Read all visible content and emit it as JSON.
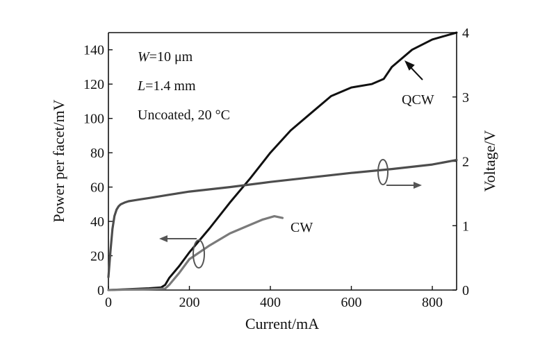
{
  "chart_data": {
    "type": "line",
    "xlabel": "Current/mA",
    "ylabel": "Power per facet/mV",
    "y2label": "Voltage/V",
    "xlim": [
      0,
      860
    ],
    "ylim": [
      0,
      150
    ],
    "y2lim": [
      0,
      4
    ],
    "xticks": [
      0,
      200,
      400,
      600,
      800
    ],
    "yticks": [
      0,
      20,
      40,
      60,
      80,
      100,
      120,
      140
    ],
    "y2ticks": [
      0,
      1,
      2,
      3,
      4
    ],
    "grid": false,
    "annotations": {
      "width_label": "W",
      "width_value": "=10  μm",
      "length_label": "L",
      "length_value": "=1.4 mm",
      "condition": "Uncoated, 20 °C"
    },
    "series": [
      {
        "name": "QCW",
        "axis": "left",
        "color": "#111111",
        "x": [
          0,
          50,
          100,
          130,
          140,
          150,
          175,
          200,
          250,
          300,
          350,
          400,
          450,
          500,
          550,
          600,
          650,
          680,
          700,
          750,
          800,
          830,
          860
        ],
        "y": [
          0,
          0.5,
          1,
          1.5,
          3,
          7,
          14,
          22,
          36,
          51,
          65,
          80,
          93,
          103,
          113,
          118,
          120,
          123,
          130,
          140,
          146,
          148,
          150
        ]
      },
      {
        "name": "CW",
        "axis": "left",
        "color": "#7a7a7a",
        "x": [
          0,
          50,
          100,
          140,
          150,
          175,
          200,
          250,
          300,
          350,
          380,
          410,
          430
        ],
        "y": [
          0,
          0.3,
          0.5,
          0.8,
          3,
          10,
          18,
          26,
          33,
          38,
          41,
          43,
          42
        ]
      },
      {
        "name": "Voltage",
        "axis": "right",
        "color": "#4d4d4d",
        "x": [
          0,
          5,
          10,
          15,
          20,
          25,
          30,
          40,
          50,
          60,
          80,
          100,
          150,
          200,
          300,
          400,
          500,
          600,
          700,
          800,
          860
        ],
        "y": [
          0.2,
          0.6,
          0.95,
          1.15,
          1.25,
          1.3,
          1.33,
          1.36,
          1.38,
          1.39,
          1.41,
          1.43,
          1.48,
          1.53,
          1.6,
          1.68,
          1.75,
          1.82,
          1.88,
          1.95,
          2.02
        ]
      }
    ],
    "series_labels": [
      "QCW",
      "CW"
    ]
  }
}
